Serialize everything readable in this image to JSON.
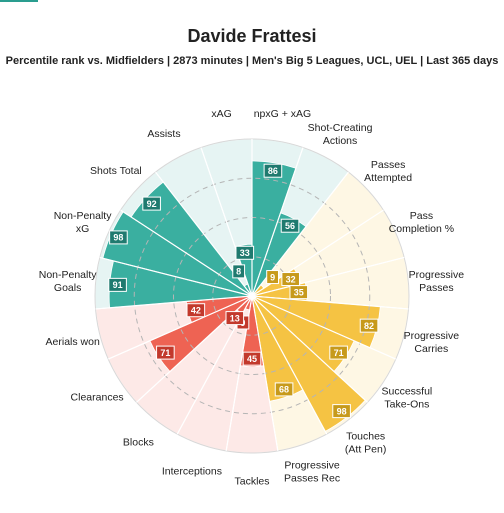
{
  "header": {
    "title": "Davide Frattesi",
    "subtitle": "Percentile rank vs. Midfielders | 2873 minutes | Men's Big 5 Leagues, UCL, UEL | Last 365 days"
  },
  "colors": {
    "attacking": "#3aafa0",
    "attacking_bg": "#e6f4f3",
    "possession": "#f5c343",
    "possession_bg": "#fef7e4",
    "defending": "#ee6353",
    "defending_bg": "#fde9e7",
    "label_fill_attacking": "#1f7a6f",
    "label_fill_possession": "#c79a1b",
    "label_fill_defending": "#c2392c"
  },
  "chart_data": {
    "type": "polar_bar",
    "title": "Davide Frattesi",
    "subtitle": "Percentile rank vs. Midfielders | 2873 minutes | Men's Big 5 Leagues, UCL, UEL | Last 365 days",
    "rlim": [
      0,
      100
    ],
    "grid": true,
    "categories": [
      {
        "label": "npxG + xAG",
        "value": 86,
        "group": "attacking"
      },
      {
        "label": "Shot-Creating Actions",
        "value": 56,
        "group": "attacking"
      },
      {
        "label": "Passes Attempted",
        "value": 9,
        "group": "possession"
      },
      {
        "label": "Pass Completion %",
        "value": 32,
        "group": "possession"
      },
      {
        "label": "Progressive Passes",
        "value": 35,
        "group": "possession"
      },
      {
        "label": "Progressive Carries",
        "value": 82,
        "group": "possession"
      },
      {
        "label": "Successful Take-Ons",
        "value": 71,
        "group": "possession"
      },
      {
        "label": "Touches (Att Pen)",
        "value": 98,
        "group": "possession"
      },
      {
        "label": "Progressive Passes Rec",
        "value": 68,
        "group": "possession"
      },
      {
        "label": "Tackles",
        "value": 45,
        "group": "defending"
      },
      {
        "label": "Interceptions",
        "value": 9,
        "group": "defending"
      },
      {
        "label": "Blocks",
        "value": 13,
        "group": "defending"
      },
      {
        "label": "Clearances",
        "value": 71,
        "group": "defending"
      },
      {
        "label": "Aerials won",
        "value": 42,
        "group": "defending"
      },
      {
        "label": "Non-Penalty Goals",
        "value": 91,
        "group": "attacking"
      },
      {
        "label": "Non-Penalty xG",
        "value": 98,
        "group": "attacking"
      },
      {
        "label": "Shots Total",
        "value": 92,
        "group": "attacking"
      },
      {
        "label": "Assists",
        "value": 8,
        "group": "attacking"
      },
      {
        "label": "xAG",
        "value": 33,
        "group": "attacking"
      }
    ]
  }
}
